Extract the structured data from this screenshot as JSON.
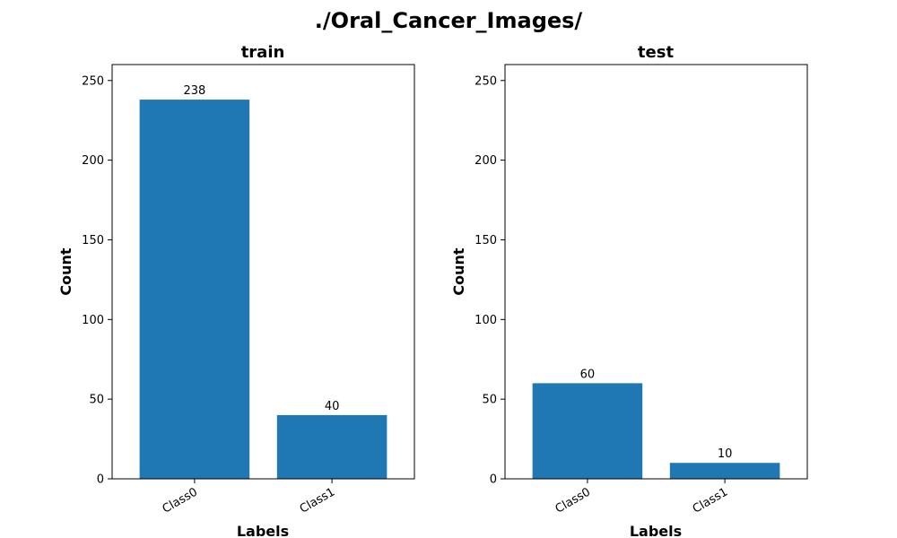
{
  "figure": {
    "suptitle": "./Oral_Cancer_Images/"
  },
  "colors": {
    "bar": "#1f77b4",
    "axis": "#000000",
    "background": "#ffffff"
  },
  "chart_data": [
    {
      "type": "bar",
      "title": "train",
      "xlabel": "Labels",
      "ylabel": "Count",
      "categories": [
        "Class0",
        "Class1"
      ],
      "values": [
        238,
        40
      ],
      "value_labels": [
        "238",
        "40"
      ],
      "ylim": [
        0,
        260
      ],
      "yticks": [
        0,
        50,
        100,
        150,
        200,
        250
      ],
      "ytick_labels": [
        "0",
        "50",
        "100",
        "150",
        "200",
        "250"
      ],
      "grid": false,
      "legend": "none"
    },
    {
      "type": "bar",
      "title": "test",
      "xlabel": "Labels",
      "ylabel": "Count",
      "categories": [
        "Class0",
        "Class1"
      ],
      "values": [
        60,
        10
      ],
      "value_labels": [
        "60",
        "10"
      ],
      "ylim": [
        0,
        260
      ],
      "yticks": [
        0,
        50,
        100,
        150,
        200,
        250
      ],
      "ytick_labels": [
        "0",
        "50",
        "100",
        "150",
        "200",
        "250"
      ],
      "grid": false,
      "legend": "none"
    }
  ]
}
